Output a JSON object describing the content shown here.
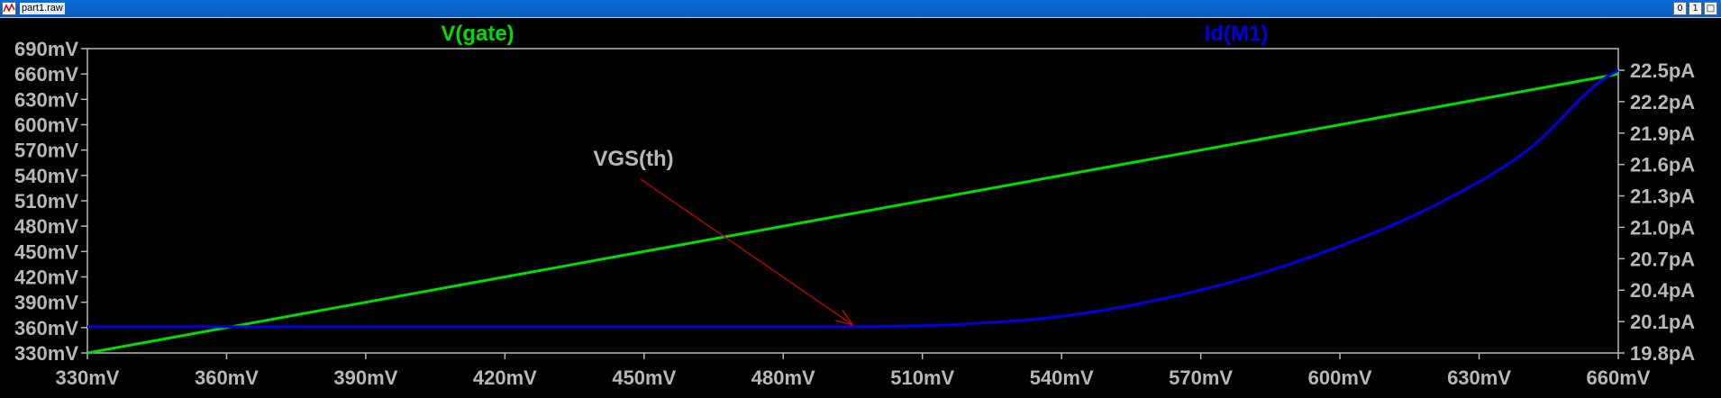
{
  "window": {
    "title": "part1.raw",
    "buttons": [
      "0",
      "1",
      "□"
    ]
  },
  "colors": {
    "background": "#000000",
    "frame": "#b8b8b8",
    "vgate": "#00dd00",
    "id_m1": "#0000e0",
    "annotation_arrow": "#cc0000",
    "tick_text": "#b8b8b8"
  },
  "chart_data": {
    "type": "line",
    "xlabel": "",
    "x_ticks": [
      "330mV",
      "360mV",
      "390mV",
      "420mV",
      "450mV",
      "480mV",
      "510mV",
      "540mV",
      "570mV",
      "600mV",
      "630mV",
      "660mV"
    ],
    "xlim": [
      330,
      660
    ],
    "y_left_ticks": [
      "690mV",
      "660mV",
      "630mV",
      "600mV",
      "570mV",
      "540mV",
      "510mV",
      "480mV",
      "450mV",
      "420mV",
      "390mV",
      "360mV",
      "330mV"
    ],
    "y_left_lim": [
      330,
      690
    ],
    "y_right_ticks": [
      "22.5pA",
      "22.2pA",
      "21.9pA",
      "21.6pA",
      "21.3pA",
      "21.0pA",
      "20.7pA",
      "20.4pA",
      "20.1pA",
      "19.8pA"
    ],
    "y_right_lim": [
      19.8,
      22.5
    ],
    "series": [
      {
        "name": "V(gate)",
        "axis": "left",
        "x": [
          330,
          660
        ],
        "y": [
          330,
          660
        ]
      },
      {
        "name": "Id(M1)",
        "axis": "right",
        "x": [
          330,
          495,
          510,
          520,
          540,
          560,
          580,
          600,
          620,
          640,
          660
        ],
        "y": [
          20.05,
          20.05,
          20.06,
          20.08,
          20.15,
          20.3,
          20.52,
          20.82,
          21.2,
          21.72,
          22.5
        ]
      }
    ],
    "annotation": {
      "text": "VGS(th)",
      "arrow_to": {
        "x": 495,
        "y_right": 20.05
      }
    },
    "grid": false
  }
}
